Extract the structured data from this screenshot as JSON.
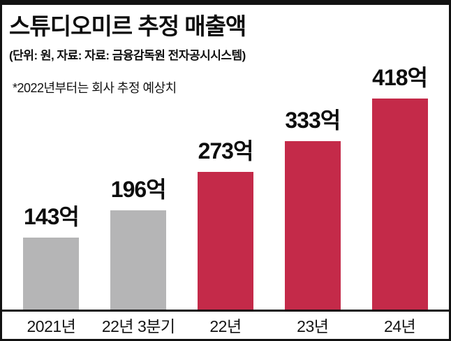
{
  "header": {
    "title": "스튜디오미르 추정 매출액",
    "subtitle": "(단위: 원, 자료: 자료: 금융감독원 전자공시시스템)",
    "note": "*2022년부터는 회사 추정 예상치"
  },
  "chart_data": {
    "type": "bar",
    "title": "스튜디오미르 추정 매출액",
    "categories": [
      "2021년",
      "22년 3분기",
      "22년",
      "23년",
      "24년"
    ],
    "values": [
      143,
      196,
      273,
      333,
      418
    ],
    "value_labels": [
      "143억",
      "196억",
      "273억",
      "333억",
      "418억"
    ],
    "bar_colors": [
      "#b5b5b6",
      "#b5b5b6",
      "#c42a49",
      "#c42a49",
      "#c42a49"
    ],
    "xlabel": "",
    "ylabel": "",
    "ylim": [
      0,
      418
    ],
    "grid": false,
    "legend": false,
    "unit_note": "단위: 원"
  },
  "colors": {
    "bar_gray": "#b5b5b6",
    "bar_red": "#c42a49",
    "text": "#0d0d0d",
    "frame": "#121212",
    "background": "#ffffff"
  }
}
